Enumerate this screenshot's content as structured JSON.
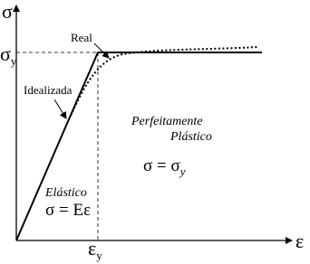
{
  "axes": {
    "y_label": "σ",
    "x_label": "ε",
    "y_mark": "σ",
    "y_mark_sub": "y",
    "x_mark": "ε",
    "x_mark_sub": "y"
  },
  "annotations": {
    "real": "Real",
    "idealizada": "Idealizada"
  },
  "regions": {
    "plastic_title": [
      "Perfeitamente",
      "Plástico"
    ],
    "plastic_eq": "σ = σ",
    "plastic_eq_sub": "y",
    "elastic_title": "Elástico",
    "elastic_eq": "σ = Eε"
  }
}
